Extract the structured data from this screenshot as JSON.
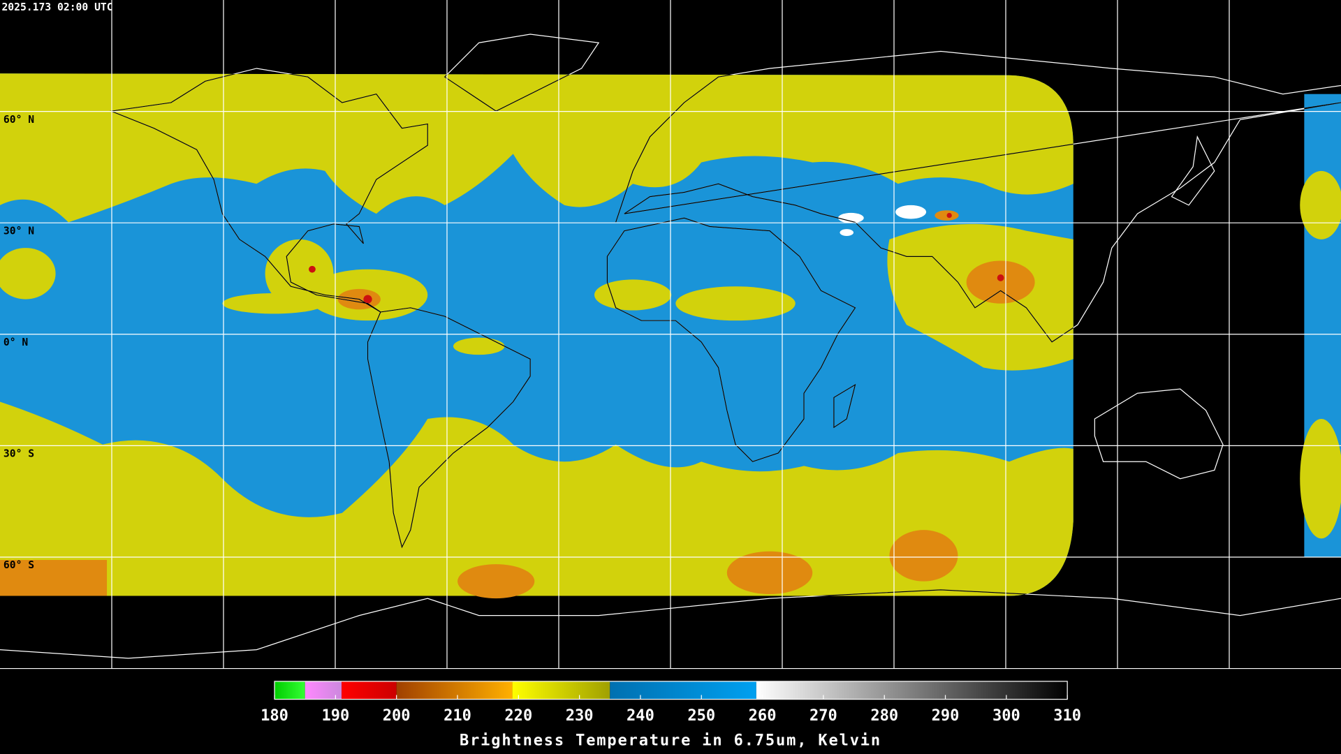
{
  "header": {
    "timestamp": "2025.173 02:00 UTC"
  },
  "map": {
    "projection": "equirectangular",
    "lon_range": [
      -180,
      180
    ],
    "lat_range": [
      -90,
      90
    ],
    "lon_lines": [
      -150,
      -120,
      -90,
      -60,
      -30,
      0,
      30,
      60,
      90,
      120,
      150
    ],
    "lat_lines": [
      {
        "value": 60,
        "label": "60° N"
      },
      {
        "value": 30,
        "label": "30° N"
      },
      {
        "value": 0,
        "label": "0° N"
      },
      {
        "value": -30,
        "label": "30° S"
      },
      {
        "value": -60,
        "label": "60° S"
      }
    ],
    "grid_color": "#ffffff",
    "coast_color_outside": "#ffffff",
    "coast_color_inside": "#000000"
  },
  "colorbar": {
    "range": [
      180,
      310
    ],
    "ticks": [
      180,
      190,
      200,
      210,
      220,
      230,
      240,
      250,
      260,
      270,
      280,
      290,
      300,
      310
    ],
    "title": "Brightness Temperature in 6.75um, Kelvin",
    "segments": [
      {
        "from": 180,
        "to": 185,
        "colors": [
          "#00cc00",
          "#33ff33"
        ]
      },
      {
        "from": 185,
        "to": 191,
        "colors": [
          "#ff88ff",
          "#cc88dd"
        ]
      },
      {
        "from": 191,
        "to": 200,
        "colors": [
          "#ff0000",
          "#cc0000"
        ]
      },
      {
        "from": 200,
        "to": 219,
        "colors": [
          "#a04000",
          "#ffb000"
        ]
      },
      {
        "from": 219,
        "to": 235,
        "colors": [
          "#ffff00",
          "#a0a000"
        ]
      },
      {
        "from": 235,
        "to": 259,
        "colors": [
          "#0070b0",
          "#00a0f0"
        ]
      },
      {
        "from": 259,
        "to": 310,
        "colors": [
          "#ffffff",
          "#000000"
        ]
      }
    ]
  }
}
